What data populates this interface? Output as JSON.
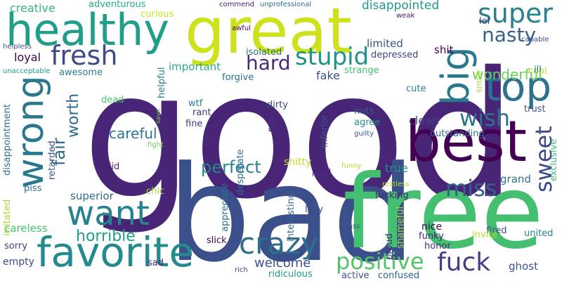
{
  "words": [
    {
      "text": "good",
      "color": "#482576"
    },
    {
      "text": "bad",
      "color": "#3b4f8b"
    },
    {
      "text": "free",
      "color": "#44bf70"
    },
    {
      "text": "great",
      "color": "#cde11d"
    },
    {
      "text": "best",
      "color": "#440154"
    },
    {
      "text": "healthy",
      "color": "#1f9e89"
    },
    {
      "text": "wrong",
      "color": "#2a788e"
    },
    {
      "text": "big",
      "color": "#2a788e"
    },
    {
      "text": "top",
      "color": "#2c728e"
    },
    {
      "text": "favorite",
      "color": "#238a8d"
    },
    {
      "text": "want",
      "color": "#26828e"
    },
    {
      "text": "crazy",
      "color": "#2d6f8e"
    },
    {
      "text": "fresh",
      "color": "#3e4a89"
    },
    {
      "text": "super",
      "color": "#26828e"
    },
    {
      "text": "sweet",
      "color": "#3f4889"
    },
    {
      "text": "fuck",
      "color": "#433e85"
    },
    {
      "text": "positive",
      "color": "#52c569"
    },
    {
      "text": "stupid",
      "color": "#21918c"
    },
    {
      "text": "wish",
      "color": "#2c728e"
    },
    {
      "text": "miss",
      "color": "#34608d"
    },
    {
      "text": "nasty",
      "color": "#33638d"
    },
    {
      "text": "hard",
      "color": "#482878"
    },
    {
      "text": "perfect",
      "color": "#25848e"
    },
    {
      "text": "fair",
      "color": "#31688e"
    },
    {
      "text": "horrible",
      "color": "#1fa088"
    },
    {
      "text": "worth",
      "color": "#2e6e8e"
    },
    {
      "text": "wonderful",
      "color": "#6ccd5a"
    },
    {
      "text": "careful",
      "color": "#2a768e"
    },
    {
      "text": "welcome",
      "color": "#3b518b"
    },
    {
      "text": "disappointed",
      "color": "#1f9a8a"
    },
    {
      "text": "creative",
      "color": "#35b779"
    },
    {
      "text": "loyal",
      "color": "#440154"
    },
    {
      "text": "fake",
      "color": "#3b518b"
    },
    {
      "text": "clean",
      "color": "#414487"
    },
    {
      "text": "important",
      "color": "#29af7f"
    },
    {
      "text": "superior",
      "color": "#31688e"
    },
    {
      "text": "true",
      "color": "#21918c"
    },
    {
      "text": "grand",
      "color": "#2c728e"
    },
    {
      "text": "limited",
      "color": "#3b528b"
    },
    {
      "text": "shit",
      "color": "#440154"
    },
    {
      "text": "ghost",
      "color": "#3b528b"
    },
    {
      "text": "careless",
      "color": "#48c16e"
    },
    {
      "text": "adventurous",
      "color": "#25ab82"
    },
    {
      "text": "empty",
      "color": "#3e4c8a"
    },
    {
      "text": "awesome",
      "color": "#287c8e"
    },
    {
      "text": "shitty",
      "color": "#bddf26"
    },
    {
      "text": "nice",
      "color": "#440154"
    },
    {
      "text": "fired",
      "color": "#3b528b"
    },
    {
      "text": "solid",
      "color": "#482173"
    },
    {
      "text": "depressed",
      "color": "#404688"
    },
    {
      "text": "isolated",
      "color": "#2c718e"
    },
    {
      "text": "forgive",
      "color": "#2d708e"
    },
    {
      "text": "helpful",
      "color": "#27808e"
    },
    {
      "text": "outstanding",
      "color": "#31688e"
    },
    {
      "text": "united",
      "color": "#26828e"
    },
    {
      "text": "cute",
      "color": "#27808e"
    },
    {
      "text": "strange",
      "color": "#4ac16d"
    },
    {
      "text": "fine",
      "color": "#46327e"
    },
    {
      "text": "rant",
      "color": "#46327e"
    },
    {
      "text": "wtf",
      "color": "#287d8e"
    },
    {
      "text": "nuts",
      "color": "#355f8d"
    },
    {
      "text": "agree",
      "color": "#21918c"
    },
    {
      "text": "dirty",
      "color": "#3e4989"
    },
    {
      "text": "mess",
      "color": "#472d7b"
    },
    {
      "text": "lazy",
      "color": "#3e4c8a"
    },
    {
      "text": "slick",
      "color": "#440154"
    },
    {
      "text": "sorry",
      "color": "#424086"
    },
    {
      "text": "invite",
      "color": "#b5de2b"
    },
    {
      "text": "funky",
      "color": "#482475"
    },
    {
      "text": "honor",
      "color": "#482878"
    },
    {
      "text": "sad",
      "color": "#482677"
    },
    {
      "text": "chic",
      "color": "#a5db36"
    },
    {
      "text": "piss",
      "color": "#306a8e"
    },
    {
      "text": "proud",
      "color": "#46337f"
    },
    {
      "text": "curious",
      "color": "#cae11f"
    },
    {
      "text": "ridiculous",
      "color": "#1f988b"
    },
    {
      "text": "active",
      "color": "#3b528b"
    },
    {
      "text": "confused",
      "color": "#33628d"
    },
    {
      "text": "trust",
      "color": "#3a548c"
    },
    {
      "text": "cool",
      "color": "#bddf26"
    },
    {
      "text": "ill",
      "color": "#2a768e"
    },
    {
      "text": "lol",
      "color": "#414487"
    },
    {
      "text": "smile",
      "color": "#a8db34"
    },
    {
      "text": "exclusive",
      "color": "#3dbc74"
    },
    {
      "text": "irritated",
      "color": "#a8db34"
    },
    {
      "text": "disappointment",
      "color": "#2d708e"
    },
    {
      "text": "retarded",
      "color": "#39568c"
    },
    {
      "text": "desperate",
      "color": "#2e6e8e"
    },
    {
      "text": "inferior",
      "color": "#39558c"
    },
    {
      "text": "fucking",
      "color": "#482576"
    },
    {
      "text": "shameful",
      "color": "#9fda3a"
    },
    {
      "text": "appreciate",
      "color": "#2c738e"
    },
    {
      "text": "interesting",
      "color": "#31688e"
    },
    {
      "text": "dead",
      "color": "#4ac16d"
    },
    {
      "text": "commend",
      "color": "#481a6c"
    },
    {
      "text": "unprofessional",
      "color": "#2f6b8e"
    },
    {
      "text": "awful",
      "color": "#440154"
    },
    {
      "text": "weak",
      "color": "#482071"
    },
    {
      "text": "capable",
      "color": "#3f4788"
    },
    {
      "text": "helpless",
      "color": "#3e4c8a"
    },
    {
      "text": "unacceptable",
      "color": "#1f9e89"
    },
    {
      "text": "save",
      "color": "#6ece58"
    },
    {
      "text": "fight",
      "color": "#6ece58"
    },
    {
      "text": "guilty",
      "color": "#3a548c"
    },
    {
      "text": "tired",
      "color": "#482071"
    },
    {
      "text": "mad",
      "color": "#46337f"
    },
    {
      "text": "funny",
      "color": "#b8de29"
    },
    {
      "text": "restless",
      "color": "#b5de2b"
    },
    {
      "text": "ass",
      "color": "#39568c"
    },
    {
      "text": "rich",
      "color": "#453882"
    }
  ]
}
